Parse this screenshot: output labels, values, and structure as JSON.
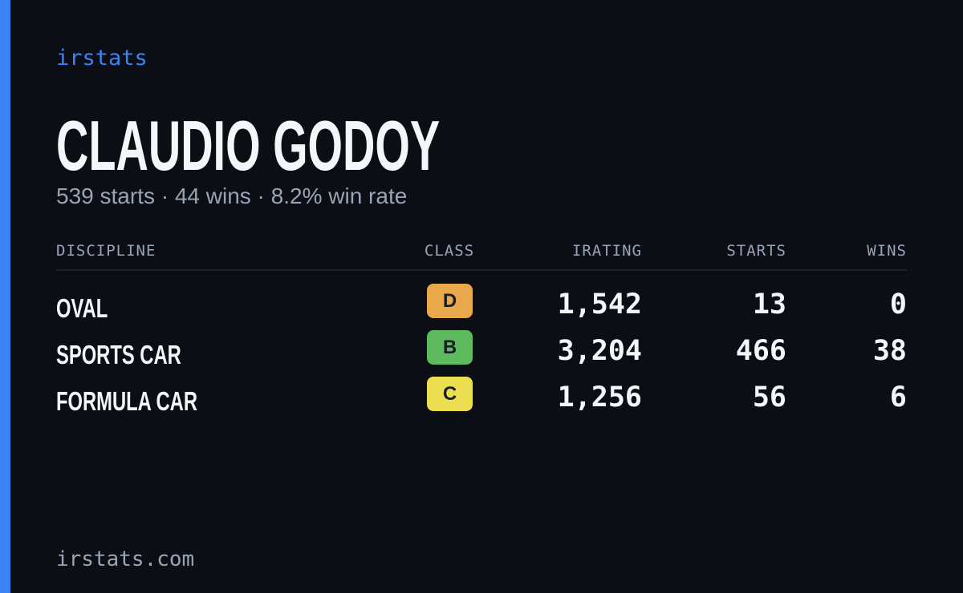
{
  "brand": "irstats",
  "driver": {
    "name": "CLAUDIO GODOY",
    "summary": "539 starts · 44 wins · 8.2% win rate"
  },
  "table": {
    "headers": [
      "DISCIPLINE",
      "CLASS",
      "IRATING",
      "STARTS",
      "WINS"
    ],
    "rows": [
      {
        "discipline": "OVAL",
        "class": "D",
        "class_color": "#e9a84c",
        "irating": "1,542",
        "starts": "13",
        "wins": "0"
      },
      {
        "discipline": "SPORTS CAR",
        "class": "B",
        "class_color": "#5dbb5d",
        "irating": "3,204",
        "starts": "466",
        "wins": "38"
      },
      {
        "discipline": "FORMULA CAR",
        "class": "C",
        "class_color": "#ebdf4f",
        "irating": "1,256",
        "starts": "56",
        "wins": "6"
      }
    ]
  },
  "footer": "irstats.com"
}
